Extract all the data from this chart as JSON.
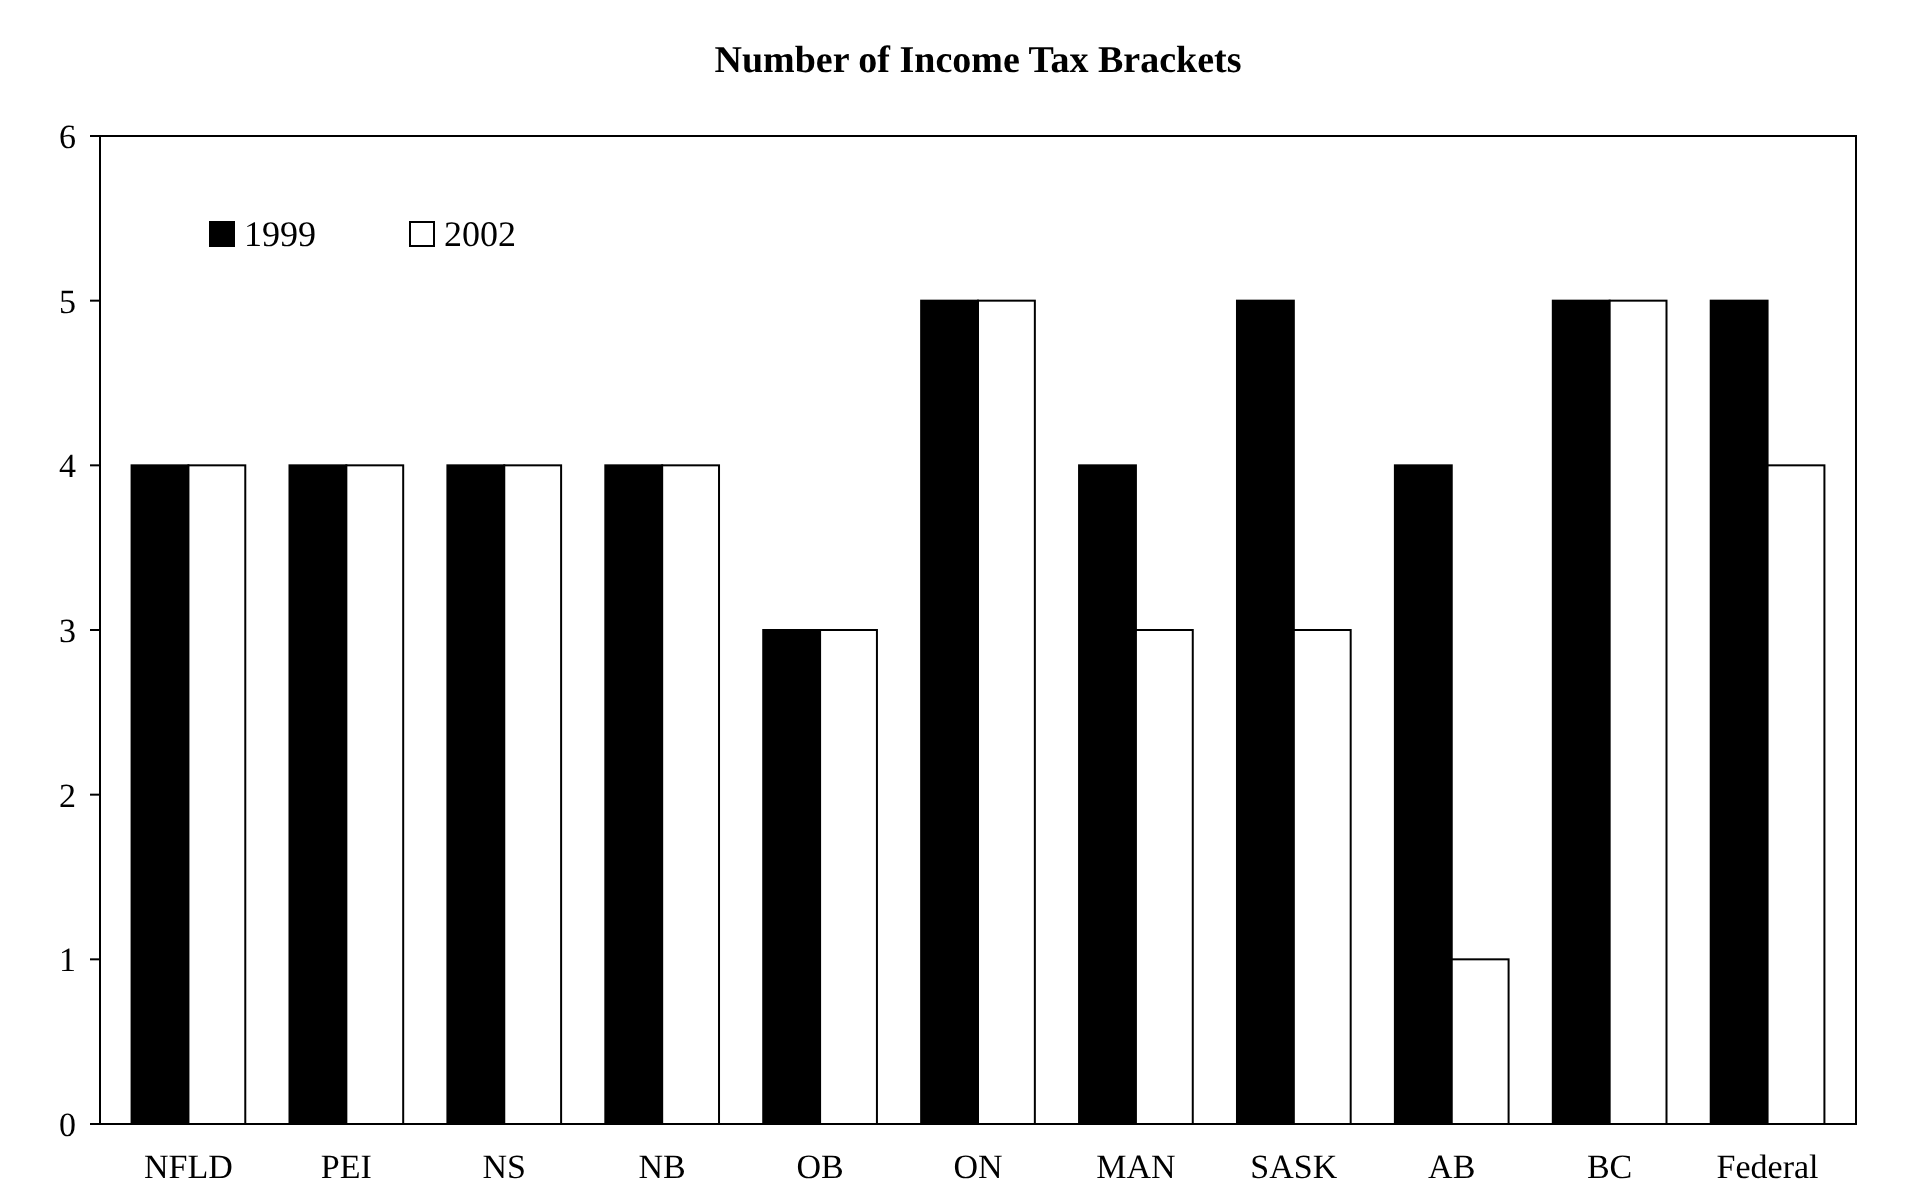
{
  "chart_data": {
    "type": "bar",
    "title": "Number of Income Tax Brackets",
    "categories": [
      "NFLD",
      "PEI",
      "NS",
      "NB",
      "OB",
      "ON",
      "MAN",
      "SASK",
      "AB",
      "BC",
      "Federal"
    ],
    "series": [
      {
        "name": "1999",
        "color": "#000000",
        "values": [
          4,
          4,
          4,
          4,
          3,
          5,
          4,
          5,
          4,
          5,
          5
        ]
      },
      {
        "name": "2002",
        "color": "#ffffff",
        "values": [
          4,
          4,
          4,
          4,
          3,
          5,
          3,
          3,
          1,
          5,
          4
        ]
      }
    ],
    "ylim": [
      0,
      6
    ],
    "yticks": [
      0,
      1,
      2,
      3,
      4,
      5,
      6
    ],
    "grid": false,
    "legend": "top left"
  }
}
